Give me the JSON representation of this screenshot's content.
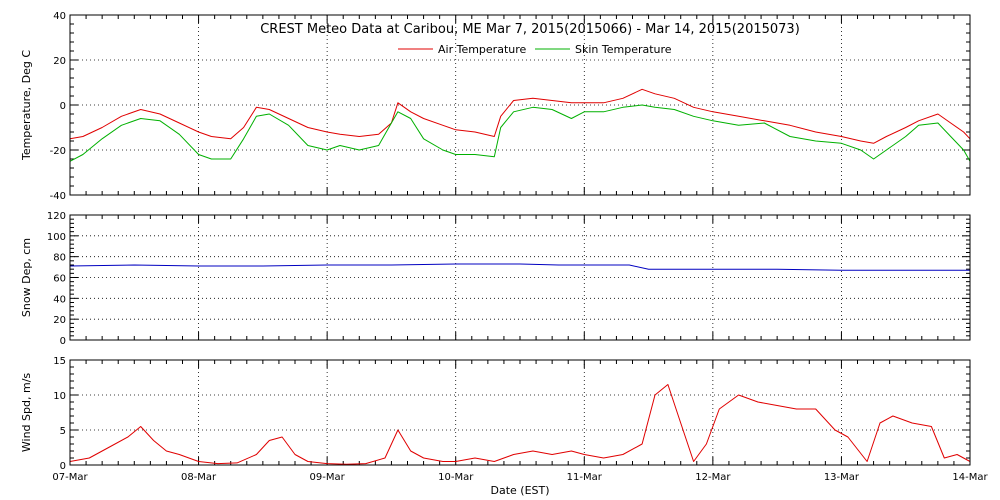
{
  "chart_data": {
    "type": "line",
    "title": "CREST Meteo Data at Caribou, ME   Mar  7, 2015(2015066) - Mar 14, 2015(2015073)",
    "xlabel": "Date (EST)",
    "x_tick_labels": [
      "07-Mar",
      "08-Mar",
      "09-Mar",
      "10-Mar",
      "11-Mar",
      "12-Mar",
      "13-Mar",
      "14-Mar"
    ],
    "xlim": [
      0,
      7
    ],
    "colors": {
      "air": "#e00000",
      "skin": "#00b000",
      "snow": "#0000c0",
      "wind": "#e00000"
    },
    "panels": [
      {
        "ylabel": "Temperature, Deg C",
        "ylim": [
          -40,
          40
        ],
        "yticks": [
          "-40",
          "-20",
          "0",
          "20",
          "40"
        ],
        "legend_position": "top-center",
        "series": [
          {
            "name": "Air Temperature",
            "color_key": "air",
            "x": [
              0,
              0.1,
              0.25,
              0.4,
              0.55,
              0.7,
              0.85,
              1.0,
              1.1,
              1.25,
              1.35,
              1.45,
              1.55,
              1.7,
              1.85,
              2.0,
              2.1,
              2.25,
              2.4,
              2.5,
              2.55,
              2.65,
              2.75,
              2.9,
              3.0,
              3.15,
              3.3,
              3.35,
              3.45,
              3.6,
              3.75,
              3.9,
              4.0,
              4.15,
              4.3,
              4.45,
              4.55,
              4.7,
              4.85,
              5.0,
              5.2,
              5.4,
              5.6,
              5.8,
              6.0,
              6.15,
              6.25,
              6.35,
              6.5,
              6.6,
              6.75,
              6.85,
              6.95,
              7.0
            ],
            "y": [
              -15,
              -14,
              -10,
              -5,
              -2,
              -4,
              -8,
              -12,
              -14,
              -15,
              -10,
              -1,
              -2,
              -6,
              -10,
              -12,
              -13,
              -14,
              -13,
              -8,
              1,
              -3,
              -6,
              -9,
              -11,
              -12,
              -14,
              -5,
              2,
              3,
              2,
              1,
              1,
              1,
              3,
              7,
              5,
              3,
              -1,
              -3,
              -5,
              -7,
              -9,
              -12,
              -14,
              -16,
              -17,
              -14,
              -10,
              -7,
              -4,
              -8,
              -12,
              -15
            ]
          },
          {
            "name": "Skin Temperature",
            "color_key": "skin",
            "x": [
              0,
              0.1,
              0.25,
              0.4,
              0.55,
              0.7,
              0.85,
              1.0,
              1.1,
              1.25,
              1.35,
              1.45,
              1.55,
              1.7,
              1.85,
              2.0,
              2.1,
              2.25,
              2.4,
              2.5,
              2.55,
              2.65,
              2.75,
              2.9,
              3.0,
              3.15,
              3.3,
              3.35,
              3.45,
              3.6,
              3.75,
              3.9,
              4.0,
              4.15,
              4.3,
              4.45,
              4.55,
              4.7,
              4.85,
              5.0,
              5.2,
              5.4,
              5.6,
              5.8,
              6.0,
              6.15,
              6.25,
              6.35,
              6.5,
              6.6,
              6.75,
              6.85,
              6.95,
              7.0
            ],
            "y": [
              -25,
              -22,
              -15,
              -9,
              -6,
              -7,
              -13,
              -22,
              -24,
              -24,
              -15,
              -5,
              -4,
              -9,
              -18,
              -20,
              -18,
              -20,
              -18,
              -8,
              -3,
              -6,
              -15,
              -20,
              -22,
              -22,
              -23,
              -10,
              -3,
              -1,
              -2,
              -6,
              -3,
              -3,
              -1,
              0,
              -1,
              -2,
              -5,
              -7,
              -9,
              -8,
              -14,
              -16,
              -17,
              -20,
              -24,
              -20,
              -14,
              -9,
              -8,
              -14,
              -20,
              -25
            ]
          }
        ]
      },
      {
        "ylabel": "Snow Dep, cm",
        "ylim": [
          0,
          120
        ],
        "yticks": [
          "0",
          "20",
          "40",
          "60",
          "80",
          "100",
          "120"
        ],
        "series": [
          {
            "name": "",
            "color_key": "snow",
            "x": [
              0,
              0.5,
              1.0,
              1.5,
              2.0,
              2.5,
              3.0,
              3.5,
              3.8,
              4.0,
              4.2,
              4.35,
              4.5,
              5.0,
              5.5,
              6.0,
              6.5,
              7.0
            ],
            "y": [
              71,
              72,
              71,
              71,
              72,
              72,
              73,
              73,
              72,
              72,
              72,
              72,
              68,
              68,
              68,
              67,
              67,
              67
            ]
          }
        ]
      },
      {
        "ylabel": "Wind Spd, m/s",
        "ylim": [
          0,
          15
        ],
        "yticks": [
          "0",
          "5",
          "10",
          "15"
        ],
        "series": [
          {
            "name": "",
            "color_key": "wind",
            "x": [
              0,
              0.15,
              0.3,
              0.45,
              0.55,
              0.65,
              0.75,
              0.85,
              1.0,
              1.15,
              1.3,
              1.45,
              1.55,
              1.65,
              1.75,
              1.85,
              2.0,
              2.15,
              2.3,
              2.45,
              2.55,
              2.65,
              2.75,
              2.9,
              3.0,
              3.15,
              3.3,
              3.45,
              3.6,
              3.75,
              3.9,
              4.0,
              4.15,
              4.3,
              4.45,
              4.55,
              4.65,
              4.75,
              4.85,
              4.95,
              5.05,
              5.2,
              5.35,
              5.5,
              5.65,
              5.8,
              5.95,
              6.05,
              6.2,
              6.3,
              6.4,
              6.55,
              6.7,
              6.8,
              6.9,
              7.0
            ],
            "y": [
              0.5,
              1,
              2.5,
              4,
              5.5,
              3.5,
              2,
              1.5,
              0.5,
              0.2,
              0.3,
              1.5,
              3.5,
              4,
              1.5,
              0.5,
              0.2,
              0.1,
              0.2,
              1,
              5,
              2,
              1,
              0.5,
              0.5,
              1,
              0.5,
              1.5,
              2,
              1.5,
              2,
              1.5,
              1,
              1.5,
              3,
              10,
              11.5,
              6,
              0.5,
              3,
              8,
              10,
              9,
              8.5,
              8,
              8,
              5,
              4,
              0.5,
              6,
              7,
              6,
              5.5,
              1,
              1.5,
              0.5
            ]
          }
        ]
      }
    ],
    "legend": [
      {
        "label": "Air Temperature",
        "color_key": "air"
      },
      {
        "label": "Skin Temperature",
        "color_key": "skin"
      }
    ]
  }
}
